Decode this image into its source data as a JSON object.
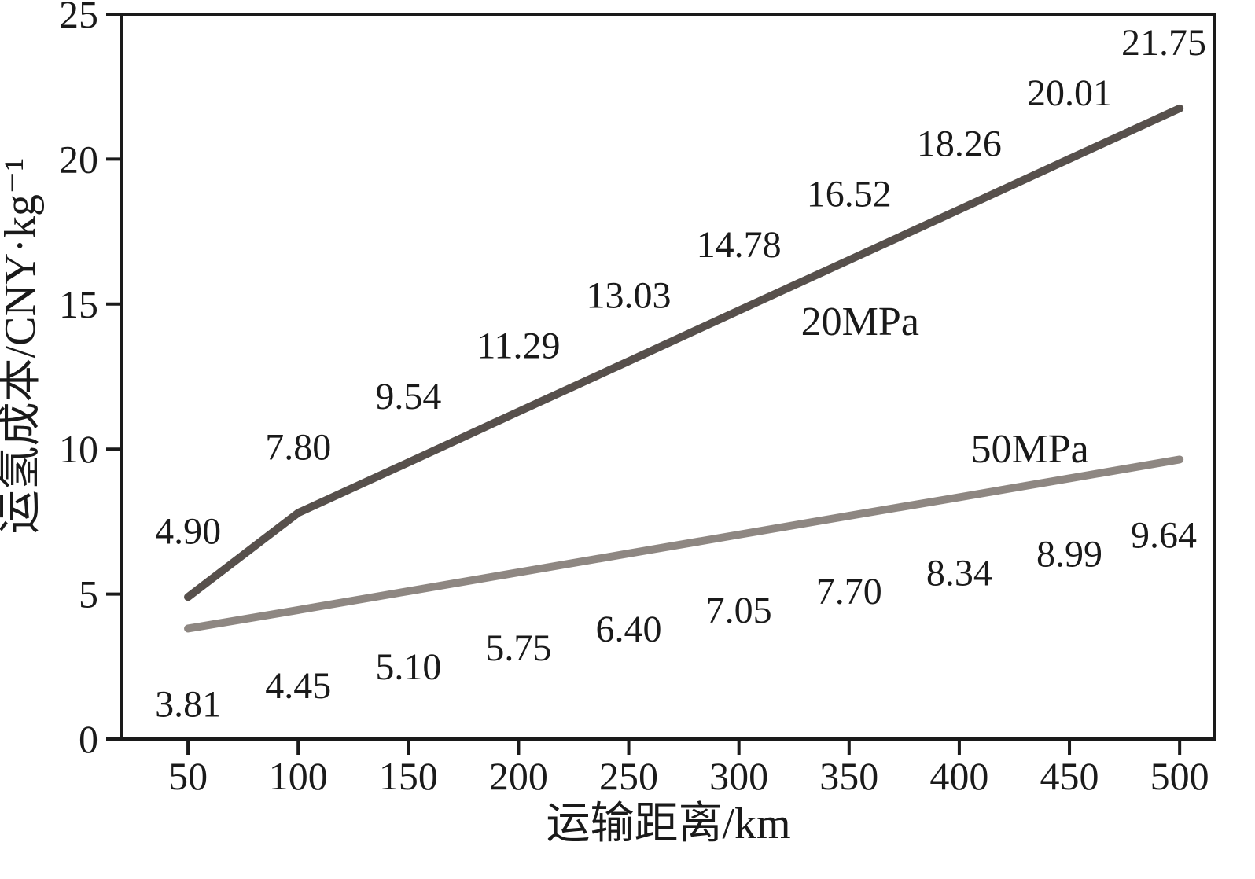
{
  "chart_data": {
    "type": "line",
    "title": "",
    "xlabel": "运输距离/km",
    "ylabel": "运氢成本/CNY·kg⁻¹",
    "x": [
      50,
      100,
      150,
      200,
      250,
      300,
      350,
      400,
      450,
      500
    ],
    "xticks": [
      50,
      100,
      150,
      200,
      250,
      300,
      350,
      400,
      450,
      500
    ],
    "yticks": [
      0,
      5,
      10,
      15,
      20,
      25
    ],
    "xlim": [
      20,
      516
    ],
    "ylim": [
      0,
      25
    ],
    "grid": false,
    "legend_position": "inline-annotations",
    "axis_color": "#1a1a1a",
    "series": [
      {
        "name": "20MPa",
        "values": [
          4.9,
          7.8,
          9.54,
          11.29,
          13.03,
          14.78,
          16.52,
          18.26,
          20.01,
          21.75
        ],
        "labels": [
          "4.90",
          "7.80",
          "9.54",
          "11.29",
          "13.03",
          "14.78",
          "16.52",
          "18.26",
          "20.01",
          "21.75"
        ],
        "label_position": "above",
        "color": "#57504c",
        "annotation": {
          "text": "20MPa",
          "x": 355,
          "y": 14.4
        }
      },
      {
        "name": "50MPa",
        "values": [
          3.81,
          4.45,
          5.1,
          5.75,
          6.4,
          7.05,
          7.7,
          8.34,
          8.99,
          9.64
        ],
        "labels": [
          "3.81",
          "4.45",
          "5.10",
          "5.75",
          "6.40",
          "7.05",
          "7.70",
          "8.34",
          "8.99",
          "9.64"
        ],
        "label_position": "below",
        "color": "#8e8782",
        "annotation": {
          "text": "50MPa",
          "x": 432,
          "y": 10.0
        }
      }
    ]
  }
}
